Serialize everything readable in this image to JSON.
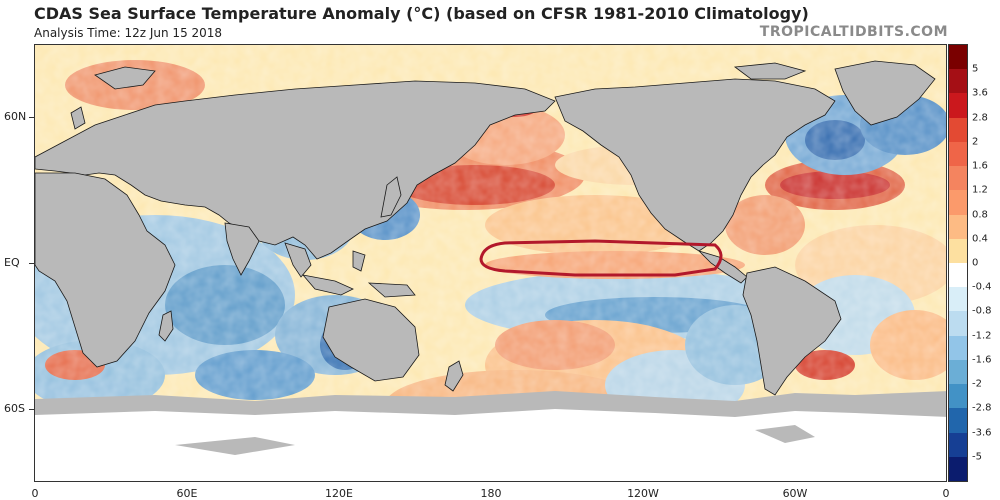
{
  "header": {
    "title": "CDAS Sea Surface Temperature Anomaly (°C) (based on CFSR 1981-2010 Climatology)",
    "analysis_time": "Analysis Time: 12z Jun 15 2018",
    "brand": "TROPICALTIDBITS.COM"
  },
  "map": {
    "lat_labels": [
      "60N",
      "EQ",
      "60S"
    ],
    "lon_labels": [
      "0",
      "60E",
      "120E",
      "180",
      "120W",
      "60W",
      "0"
    ],
    "highlighted_region": "Niño 3.4 / equatorial Pacific warm anomaly outline"
  },
  "colorbar": {
    "labels": [
      "5",
      "3.6",
      "2.8",
      "2",
      "1.6",
      "1.2",
      "0.8",
      "0.4",
      "0",
      "-0.4",
      "-0.8",
      "-1.2",
      "-1.6",
      "-2",
      "-2.8",
      "-3.6",
      "-5"
    ],
    "colors": [
      "#7a0000",
      "#a50f15",
      "#cb181d",
      "#e34a33",
      "#ef6548",
      "#f4845f",
      "#fb9a6b",
      "#fdbb84",
      "#fde0a0",
      "#ffffff",
      "#d9eef8",
      "#bcdcf0",
      "#92c5e8",
      "#6baed6",
      "#4292c6",
      "#2166ac",
      "#163f94",
      "#0b1c6e"
    ]
  },
  "colors": {
    "land": "#b9b9b9",
    "ice": "#ffffff",
    "outline": "#b2182b"
  }
}
